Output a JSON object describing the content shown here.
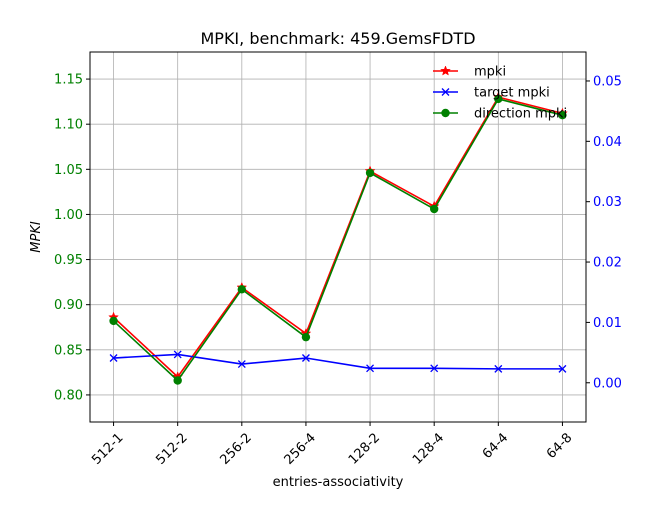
{
  "chart_data": {
    "type": "line",
    "title": "MPKI, benchmark: 459.GemsFDTD",
    "xlabel": "entries-associativity",
    "ylabel": "MPKI",
    "categories": [
      "512-1",
      "512-2",
      "256-2",
      "256-4",
      "128-2",
      "128-4",
      "64-4",
      "64-8"
    ],
    "ylim_left": [
      0.77,
      1.18
    ],
    "ylim_right": [
      -0.0065,
      0.0548
    ],
    "yticks_left": [
      "0.80",
      "0.85",
      "0.90",
      "0.95",
      "1.00",
      "1.05",
      "1.10",
      "1.15"
    ],
    "yticks_right": [
      "0.00",
      "0.01",
      "0.02",
      "0.03",
      "0.04",
      "0.05"
    ],
    "left_tick_color": "#008000",
    "right_tick_color": "#0000ff",
    "grid": true,
    "legend_position": "upper-right",
    "series": [
      {
        "name": "mpki",
        "axis": "left",
        "color": "#ff0000",
        "marker": "star",
        "values": [
          0.886,
          0.82,
          0.919,
          0.868,
          1.048,
          1.009,
          1.13,
          1.112
        ]
      },
      {
        "name": "target mpki",
        "axis": "right",
        "color": "#0000ff",
        "marker": "x",
        "values": [
          0.0041,
          0.0047,
          0.0031,
          0.0041,
          0.0024,
          0.0024,
          0.0023,
          0.0023
        ]
      },
      {
        "name": "direction mpki",
        "axis": "left",
        "color": "#008000",
        "marker": "circle",
        "values": [
          0.882,
          0.816,
          0.917,
          0.864,
          1.046,
          1.006,
          1.128,
          1.11
        ]
      }
    ]
  }
}
